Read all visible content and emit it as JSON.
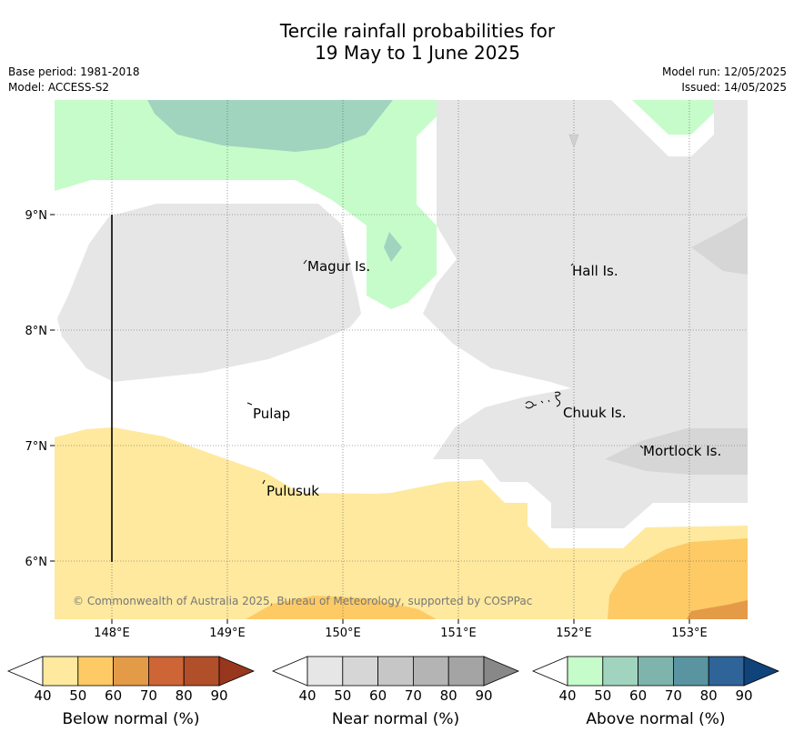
{
  "title_line1": "Tercile rainfall probabilities for",
  "title_line2": "19 May to 1 June 2025",
  "meta_left": [
    "Base period: 1981-2018",
    "Model: ACCESS-S2"
  ],
  "meta_right": [
    "Model run: 12/05/2025",
    "Issued: 14/05/2025"
  ],
  "map": {
    "lat_labels": [
      "9°N",
      "8°N",
      "7°N",
      "6°N"
    ],
    "lon_labels": [
      "148°E",
      "149°E",
      "150°E",
      "151°E",
      "152°E",
      "153°E"
    ],
    "places": [
      "Magur Is.",
      "Hall Is.",
      "Pulap",
      "Chuuk Is.",
      "Mortlock Is.",
      "Pulusuk"
    ],
    "copyright": "© Commonwealth of Australia 2025, Bureau of Meteorology, supported by COSPPac"
  },
  "colorbars": [
    {
      "title": "Below normal (%)",
      "ticks": [
        "40",
        "50",
        "60",
        "70",
        "80",
        "90"
      ],
      "colors": [
        "#ffffff",
        "#fee99e",
        "#fdca65",
        "#e49b47",
        "#cd6536",
        "#b04f2a",
        "#99361e"
      ]
    },
    {
      "title": "Near normal (%)",
      "ticks": [
        "40",
        "50",
        "60",
        "70",
        "80",
        "90"
      ],
      "colors": [
        "#ffffff",
        "#e6e6e6",
        "#d6d6d6",
        "#c6c6c6",
        "#b4b4b4",
        "#a4a4a4",
        "#888888"
      ]
    },
    {
      "title": "Above normal (%)",
      "ticks": [
        "40",
        "50",
        "60",
        "70",
        "80",
        "90"
      ],
      "colors": [
        "#ffffff",
        "#c6fcc9",
        "#a0d4be",
        "#7fb4ac",
        "#5a94a0",
        "#2f6498",
        "#10437a"
      ]
    }
  ]
}
